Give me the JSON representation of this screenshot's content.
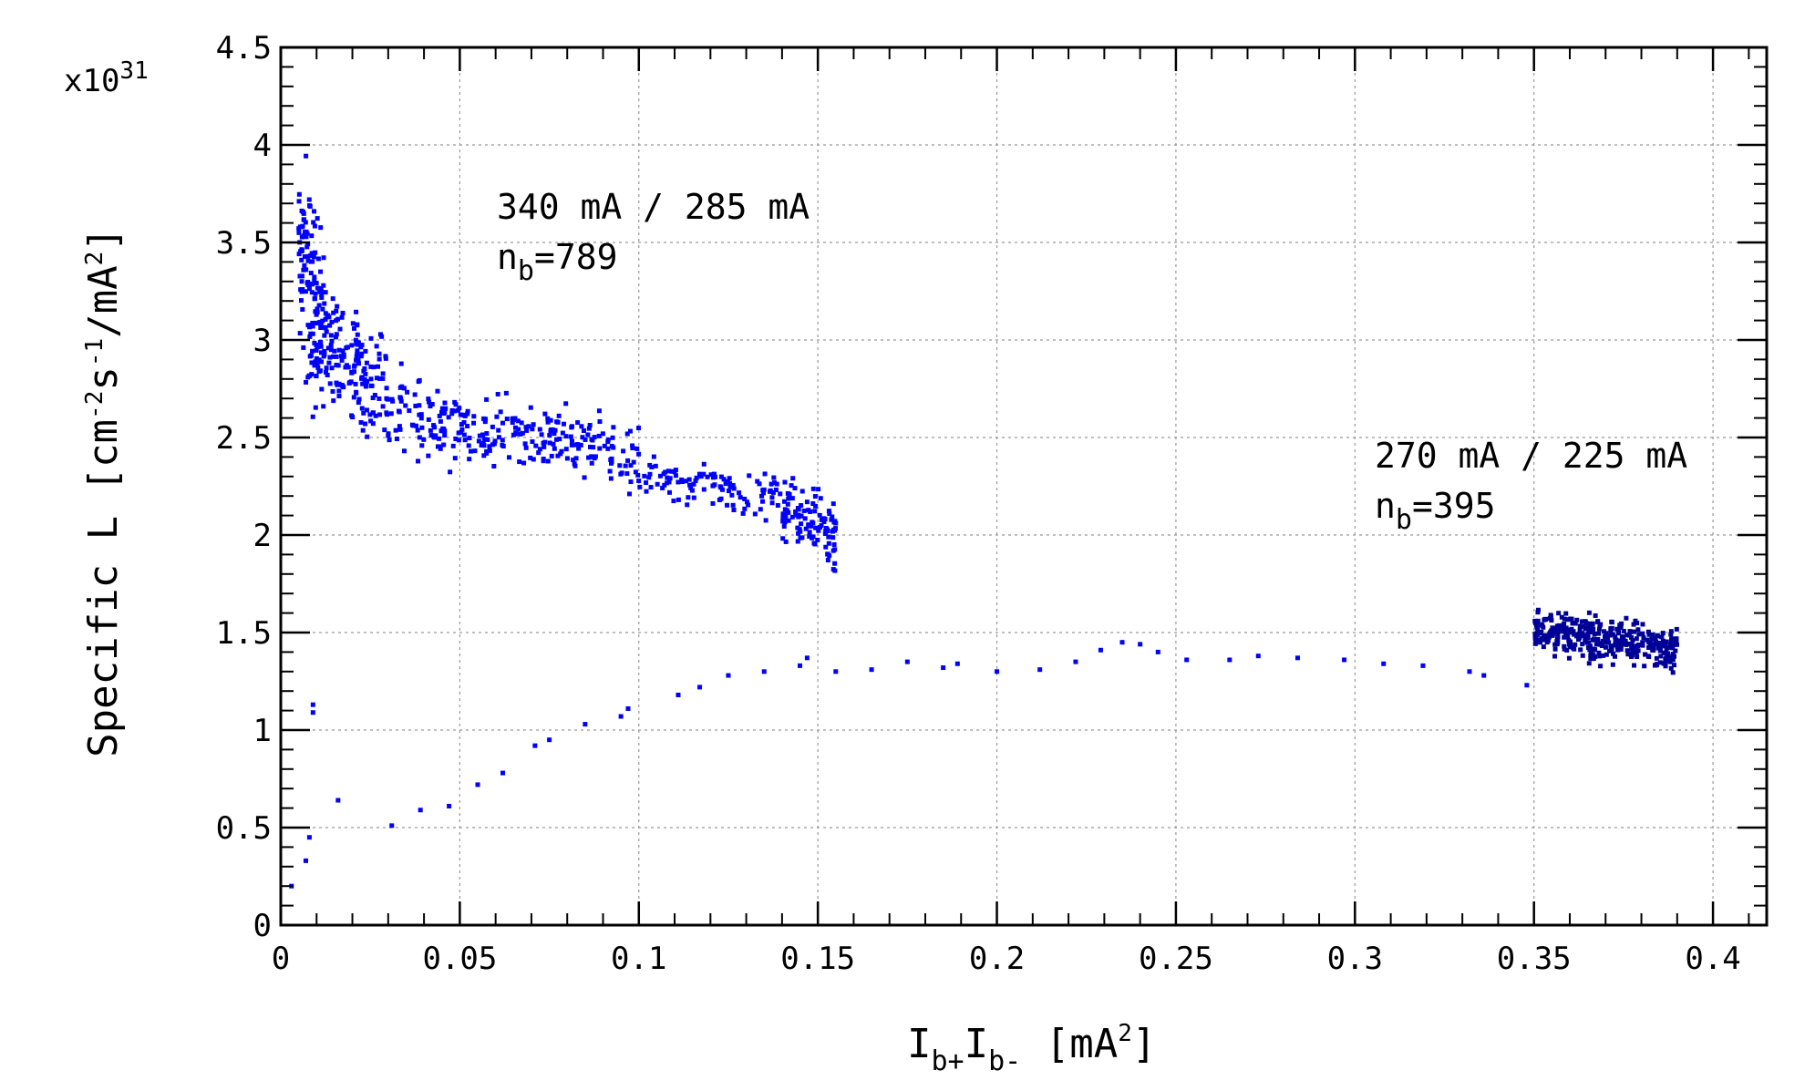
{
  "chart_data": {
    "type": "scatter",
    "xlabel": {
      "main": "I",
      "sub1": "b+",
      "mid": "I",
      "sub2": "b-",
      "units": "[mA",
      "sup": "2",
      "close": "]"
    },
    "ylabel": {
      "p1": "Specific L [cm",
      "s1": "-2",
      "p2": "s",
      "s2": "-1",
      "p3": "/mA",
      "s3": "2",
      "p4": "]"
    },
    "y_multiplier": {
      "base": "x10",
      "exp": "31"
    },
    "xlim": [
      0,
      0.415
    ],
    "ylim": [
      0,
      4.5
    ],
    "grid": true,
    "x_ticks": [
      "0",
      "0.05",
      "0.1",
      "0.15",
      "0.2",
      "0.25",
      "0.3",
      "0.35",
      "0.4"
    ],
    "y_ticks": [
      "0",
      "0.5",
      "1",
      "1.5",
      "2",
      "2.5",
      "3",
      "3.5",
      "4",
      "4.5"
    ],
    "annotations": [
      {
        "line1": "340 mA / 285 mA",
        "n_sym": "n",
        "n_sub": "b",
        "n_val": "=789"
      },
      {
        "line1": "270 mA / 225 mA",
        "n_sym": "n",
        "n_sub": "b",
        "n_val": "=395"
      }
    ],
    "series": [
      {
        "name": "340 mA / 285 mA, nb=789",
        "color": "#0000ff",
        "clusters": [
          {
            "x_range": [
              0.005,
              0.012
            ],
            "y_range": [
              2.5,
              4.0
            ],
            "count": 140
          },
          {
            "x_range": [
              0.012,
              0.03
            ],
            "y_range": [
              2.45,
              3.3
            ],
            "count": 160
          },
          {
            "x_range": [
              0.03,
              0.06
            ],
            "y_range": [
              2.3,
              2.85
            ],
            "count": 130
          },
          {
            "x_range": [
              0.06,
              0.1
            ],
            "y_range": [
              2.25,
              2.7
            ],
            "count": 150
          },
          {
            "x_range": [
              0.1,
              0.14
            ],
            "y_range": [
              2.1,
              2.4
            ],
            "count": 110
          },
          {
            "x_range": [
              0.14,
              0.155
            ],
            "y_range": [
              1.85,
              2.3
            ],
            "count": 110
          }
        ],
        "points": [
          [
            0.003,
            0.2
          ],
          [
            0.007,
            0.33
          ],
          [
            0.008,
            0.45
          ],
          [
            0.009,
            1.09
          ],
          [
            0.009,
            1.13
          ],
          [
            0.016,
            0.64
          ],
          [
            0.031,
            0.51
          ],
          [
            0.039,
            0.59
          ],
          [
            0.047,
            0.61
          ],
          [
            0.055,
            0.72
          ],
          [
            0.062,
            0.78
          ],
          [
            0.071,
            0.92
          ],
          [
            0.075,
            0.95
          ],
          [
            0.085,
            1.03
          ],
          [
            0.095,
            1.07
          ],
          [
            0.097,
            1.11
          ],
          [
            0.111,
            1.18
          ],
          [
            0.117,
            1.22
          ],
          [
            0.125,
            1.28
          ],
          [
            0.135,
            1.3
          ],
          [
            0.145,
            1.33
          ],
          [
            0.147,
            1.37
          ],
          [
            0.155,
            1.3
          ],
          [
            0.165,
            1.31
          ],
          [
            0.175,
            1.35
          ],
          [
            0.185,
            1.32
          ],
          [
            0.189,
            1.34
          ],
          [
            0.2,
            1.3
          ],
          [
            0.212,
            1.31
          ],
          [
            0.222,
            1.35
          ],
          [
            0.229,
            1.41
          ],
          [
            0.235,
            1.45
          ],
          [
            0.24,
            1.44
          ],
          [
            0.245,
            1.4
          ],
          [
            0.253,
            1.36
          ],
          [
            0.265,
            1.36
          ],
          [
            0.273,
            1.38
          ],
          [
            0.284,
            1.37
          ],
          [
            0.297,
            1.36
          ],
          [
            0.308,
            1.34
          ],
          [
            0.319,
            1.33
          ],
          [
            0.332,
            1.3
          ],
          [
            0.336,
            1.28
          ],
          [
            0.348,
            1.23
          ]
        ]
      },
      {
        "name": "270 mA / 225 mA, nb=395",
        "color": "#000099",
        "clusters": [
          {
            "x_range": [
              0.35,
              0.39
            ],
            "y_range": [
              1.3,
              1.62
            ],
            "count": 395
          }
        ]
      }
    ]
  }
}
